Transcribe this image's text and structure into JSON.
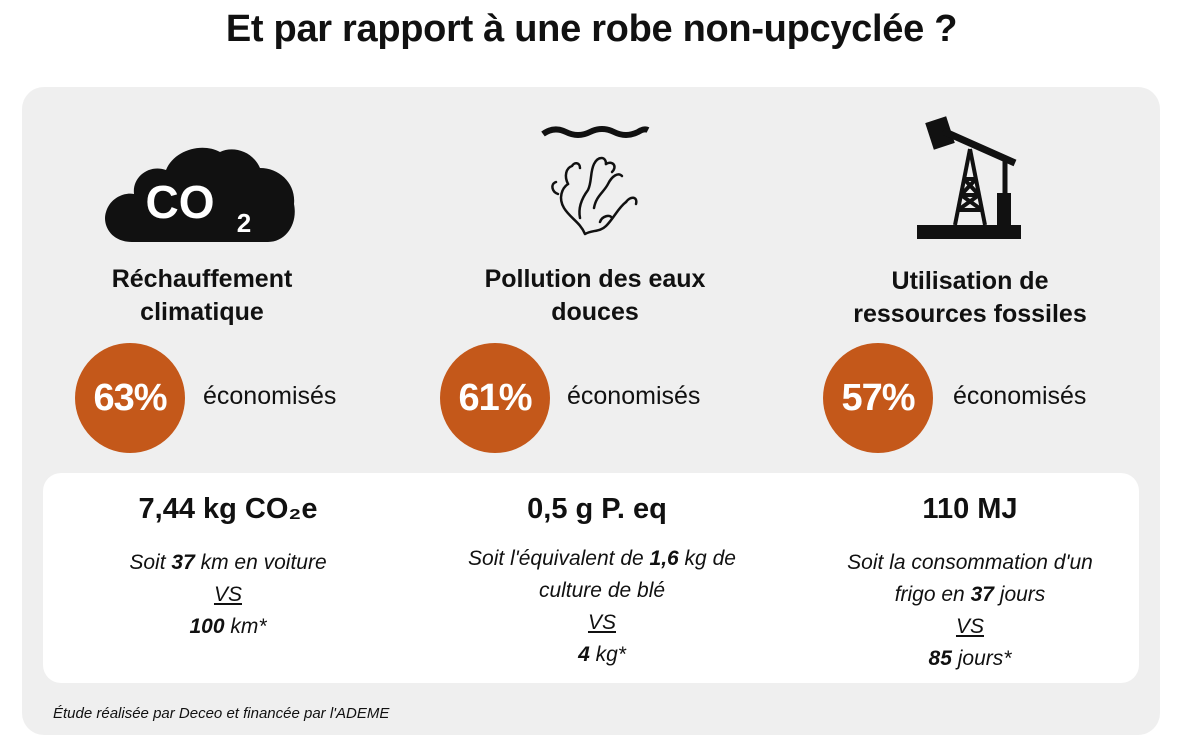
{
  "title": "Et par rapport à une robe non-upcyclée ?",
  "colors": {
    "accent": "#c4581a",
    "panel": "#efefef",
    "card": "#ffffff"
  },
  "items": [
    {
      "icon": "co2-cloud-icon",
      "icon_text": "CO",
      "icon_sub": "2",
      "heading_line1": "Réchauffement",
      "heading_line2": "climatique",
      "percent": "63%",
      "saved_label": "économisés",
      "stat": "7,44 kg CO₂e",
      "desc_prefix": "Soit ",
      "desc_value": "37",
      "desc_suffix": " km en voiture",
      "vs": "VS",
      "compare_value": "100",
      "compare_suffix": " km*"
    },
    {
      "icon": "coral-water-icon",
      "heading_line1": "Pollution des eaux",
      "heading_line2": "douces",
      "percent": "61%",
      "saved_label": "économisés",
      "stat": "0,5 g P. eq",
      "desc_prefix": "Soit l'équivalent de  ",
      "desc_value": "1,6",
      "desc_suffix": " kg de",
      "desc_line2": "culture de blé",
      "vs": "VS",
      "compare_value": "4",
      "compare_suffix": " kg*"
    },
    {
      "icon": "oil-pump-icon",
      "heading_line1": "Utilisation de",
      "heading_line2": "ressources fossiles",
      "percent": "57%",
      "saved_label": "économisés",
      "stat": "110 MJ",
      "desc_line1": "Soit la consommation d'un",
      "desc_prefix": "frigo en ",
      "desc_value": "37",
      "desc_suffix": " jours",
      "vs": "VS",
      "compare_value": "85",
      "compare_suffix": " jours*"
    }
  ],
  "footnote": "Étude réalisée par Deceo et financée par l'ADEME"
}
